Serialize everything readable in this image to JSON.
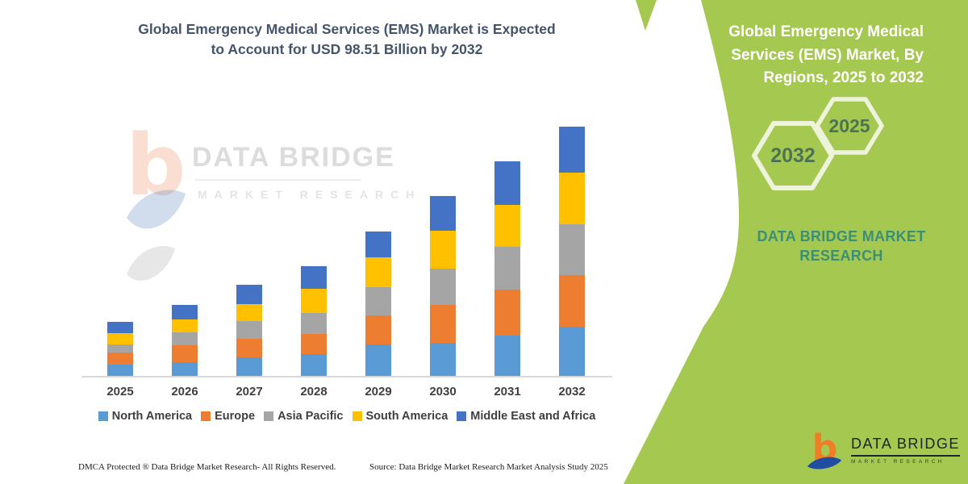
{
  "header": {
    "title_lines": [
      "Global Emergency Medical Services (EMS) Market is Expected",
      "to Account for USD 98.51 Billion by 2032"
    ]
  },
  "watermark": {
    "brand": "DATA BRIDGE",
    "tagline": "MARKET RESEARCH"
  },
  "chart_data": {
    "type": "bar",
    "stacked": true,
    "title": "Global Emergency Medical Services (EMS) Market is Expected to Account for USD 98.51 Billion by 2032",
    "unit": "USD Billion",
    "categories": [
      "2025",
      "2026",
      "2027",
      "2028",
      "2029",
      "2030",
      "2031",
      "2032"
    ],
    "series": [
      {
        "name": "North America",
        "color": "#5b9bd5",
        "values": [
          4.5,
          5.5,
          7.3,
          8.5,
          12.5,
          13.0,
          16.0,
          19.5
        ]
      },
      {
        "name": "Europe",
        "color": "#ed7d31",
        "values": [
          4.8,
          6.6,
          7.5,
          8.1,
          11.5,
          15.0,
          18.0,
          20.3
        ]
      },
      {
        "name": "Asia Pacific",
        "color": "#a5a5a5",
        "values": [
          3.2,
          5.1,
          6.9,
          8.2,
          11.0,
          14.5,
          17.0,
          20.2
        ]
      },
      {
        "name": "South America",
        "color": "#ffc000",
        "values": [
          4.5,
          5.1,
          6.7,
          9.6,
          12.0,
          15.0,
          16.5,
          20.3
        ]
      },
      {
        "name": "Middle East and Africa",
        "color": "#4472c4",
        "values": [
          4.3,
          5.8,
          7.7,
          9.1,
          10.0,
          13.5,
          17.5,
          18.21
        ]
      }
    ],
    "xlabel": "",
    "ylabel": "",
    "ylim": [
      0,
      104
    ],
    "grid": false,
    "legend_position": "bottom"
  },
  "side_panel": {
    "accent_color": "#a5c850",
    "title_lines": [
      "Global Emergency Medical",
      "Services (EMS) Market, By",
      "Regions, 2025 to 2032"
    ],
    "hexagon_large_label": "2032",
    "hexagon_small_label": "2025",
    "brand_lines": [
      "DATA BRIDGE MARKET",
      "RESEARCH"
    ]
  },
  "footer": {
    "dmca": "DMCA Protected ® Data Bridge Market Research- All Rights Reserved.",
    "source": "Source: Data Bridge Market Research  Market Analysis Study 2025"
  },
  "logo": {
    "brand": "DATA BRIDGE",
    "tagline": "MARKET RESEARCH"
  }
}
